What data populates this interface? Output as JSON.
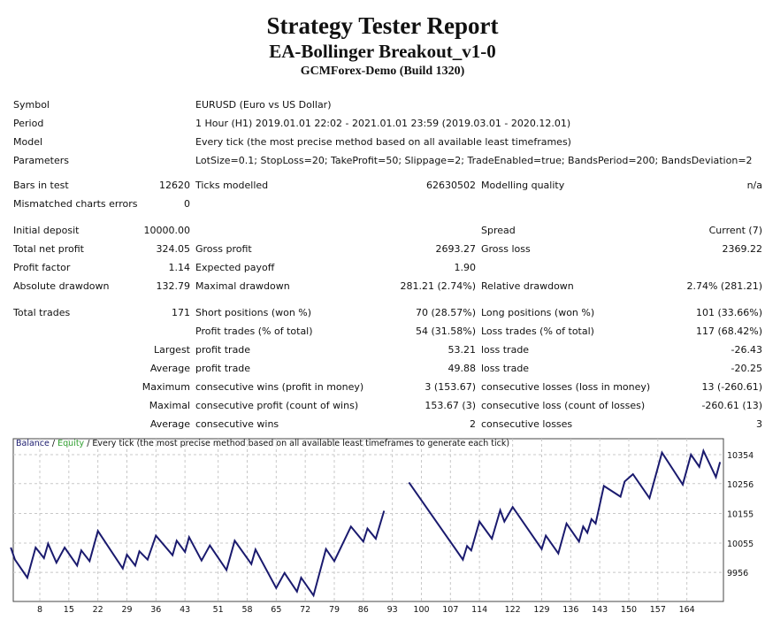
{
  "header": {
    "title": "Strategy Tester Report",
    "expert": "EA-Bollinger Breakout_v1-0",
    "server": "GCMForex-Demo (Build 1320)"
  },
  "info": [
    {
      "label": "Symbol",
      "value": "EURUSD (Euro vs US Dollar)"
    },
    {
      "label": "Period",
      "value": "1 Hour (H1) 2019.01.01 22:02 - 2021.01.01 23:59 (2019.03.01 - 2020.12.01)"
    },
    {
      "label": "Model",
      "value": "Every tick (the most precise method based on all available least timeframes)"
    },
    {
      "label": "Parameters",
      "value": "LotSize=0.1; StopLoss=20; TakeProfit=50; Slippage=2; TradeEnabled=true; BandsPeriod=200; BandsDeviation=2"
    }
  ],
  "bars": {
    "bars_label": "Bars in test",
    "bars": "12620",
    "ticks_label": "Ticks modelled",
    "ticks": "62630502",
    "quality_label": "Modelling quality",
    "quality": "n/a",
    "mismatch_label": "Mismatched charts errors",
    "mismatch": "0"
  },
  "results": {
    "initial_deposit_label": "Initial deposit",
    "initial_deposit": "10000.00",
    "spread_label": "Spread",
    "spread": "Current (7)",
    "net_profit_label": "Total net profit",
    "net_profit": "324.05",
    "gross_profit_label": "Gross profit",
    "gross_profit": "2693.27",
    "gross_loss_label": "Gross loss",
    "gross_loss": "2369.22",
    "profit_factor_label": "Profit factor",
    "profit_factor": "1.14",
    "expected_payoff_label": "Expected payoff",
    "expected_payoff": "1.90",
    "abs_dd_label": "Absolute drawdown",
    "abs_dd": "132.79",
    "max_dd_label": "Maximal drawdown",
    "max_dd": "281.21 (2.74%)",
    "rel_dd_label": "Relative drawdown",
    "rel_dd": "2.74% (281.21)",
    "total_trades_label": "Total trades",
    "total_trades": "171",
    "short_label": "Short positions (won %)",
    "short": "70 (28.57%)",
    "long_label": "Long positions (won %)",
    "long": "101 (33.66%)",
    "profit_trades_label": "Profit trades (% of total)",
    "profit_trades": "54 (31.58%)",
    "loss_trades_label": "Loss trades (% of total)",
    "loss_trades": "117 (68.42%)",
    "largest": "Largest",
    "largest_profit_label": "profit trade",
    "largest_profit": "53.21",
    "largest_loss_label": "loss trade",
    "largest_loss": "-26.43",
    "average": "Average",
    "avg_profit_label": "profit trade",
    "avg_profit": "49.88",
    "avg_loss_label": "loss trade",
    "avg_loss": "-20.25",
    "maximum": "Maximum",
    "max_cons_wins_label": "consecutive wins (profit in money)",
    "max_cons_wins": "3 (153.67)",
    "max_cons_losses_label": "consecutive losses (loss in money)",
    "max_cons_losses": "13 (-260.61)",
    "maximal": "Maximal",
    "maximal_cons_profit_label": "consecutive profit (count of wins)",
    "maximal_cons_profit": "153.67 (3)",
    "maximal_cons_loss_label": "consecutive loss (count of losses)",
    "maximal_cons_loss": "-260.61 (13)",
    "avg_cons": "Average",
    "avg_cons_wins_label": "consecutive wins",
    "avg_cons_wins": "2",
    "avg_cons_losses_label": "consecutive losses",
    "avg_cons_losses": "3"
  },
  "chart_data": {
    "type": "line",
    "legend": {
      "balance": "Balance",
      "sep1": " / ",
      "equity": "Equity",
      "desc": " / Every tick (the most precise method based on all available least timeframes to generate each tick)"
    },
    "colors": {
      "balance": "#1a1a6e",
      "equity": "#2e9e2e",
      "grid": "#c8c8c8"
    },
    "xticks": [
      8,
      15,
      22,
      29,
      36,
      43,
      51,
      58,
      65,
      72,
      79,
      86,
      93,
      100,
      107,
      114,
      122,
      129,
      136,
      143,
      150,
      157,
      164
    ],
    "yticks": [
      10354,
      10256,
      10155,
      10055,
      9956
    ],
    "xlim": [
      1,
      173
    ],
    "ylim": [
      9860,
      10400
    ],
    "points": [
      [
        1,
        10040
      ],
      [
        2,
        9999
      ],
      [
        5,
        9938
      ],
      [
        7,
        10040
      ],
      [
        9,
        10004
      ],
      [
        10,
        10053
      ],
      [
        12,
        9989
      ],
      [
        14,
        10040
      ],
      [
        17,
        9979
      ],
      [
        18,
        10030
      ],
      [
        20,
        9994
      ],
      [
        22,
        10096
      ],
      [
        28,
        9969
      ],
      [
        29,
        10016
      ],
      [
        31,
        9979
      ],
      [
        32,
        10027
      ],
      [
        34,
        9999
      ],
      [
        36,
        10080
      ],
      [
        40,
        10014
      ],
      [
        41,
        10063
      ],
      [
        43,
        10025
      ],
      [
        44,
        10075
      ],
      [
        47,
        9996
      ],
      [
        49,
        10047
      ],
      [
        53,
        9964
      ],
      [
        55,
        10063
      ],
      [
        59,
        9984
      ],
      [
        60,
        10033
      ],
      [
        65,
        9903
      ],
      [
        67,
        9954
      ],
      [
        70,
        9891
      ],
      [
        71,
        9938
      ],
      [
        74,
        9878
      ],
      [
        77,
        10035
      ],
      [
        79,
        9994
      ],
      [
        83,
        10111
      ],
      [
        86,
        10060
      ],
      [
        87,
        10104
      ],
      [
        89,
        10070
      ],
      [
        91,
        10164
      ],
      null,
      [
        97,
        10260
      ],
      [
        110,
        9999
      ],
      [
        111,
        10045
      ],
      [
        112,
        10030
      ],
      [
        114,
        10128
      ],
      [
        117,
        10070
      ],
      [
        119,
        10166
      ],
      [
        120,
        10128
      ],
      [
        122,
        10177
      ],
      [
        129,
        10035
      ],
      [
        130,
        10080
      ],
      [
        133,
        10020
      ],
      [
        135,
        10121
      ],
      [
        138,
        10060
      ],
      [
        139,
        10111
      ],
      [
        140,
        10090
      ],
      [
        141,
        10136
      ],
      [
        142,
        10121
      ],
      [
        144,
        10248
      ],
      [
        148,
        10212
      ],
      [
        149,
        10263
      ],
      [
        151,
        10288
      ],
      [
        155,
        10207
      ],
      [
        158,
        10361
      ],
      [
        163,
        10253
      ],
      [
        165,
        10354
      ],
      [
        167,
        10313
      ],
      [
        168,
        10367
      ],
      [
        171,
        10278
      ],
      [
        172,
        10329
      ]
    ]
  }
}
